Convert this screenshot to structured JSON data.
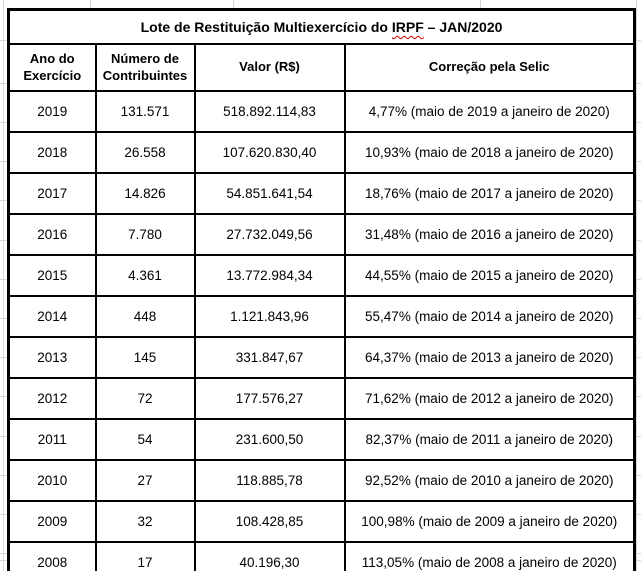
{
  "title": {
    "prefix": "Lote de Restituição Multiexercício do ",
    "word": "IRPF",
    "suffix": " – JAN/2020"
  },
  "table": {
    "headers": [
      "Ano do Exercício",
      "Número de Contribuintes",
      "Valor (R$)",
      "Correção pela Selic"
    ],
    "rows": [
      {
        "ano": "2019",
        "contribuintes": "131.571",
        "valor": "518.892.114,83",
        "correcao": "4,77% (maio de 2019 a janeiro de 2020)"
      },
      {
        "ano": "2018",
        "contribuintes": "26.558",
        "valor": "107.620.830,40",
        "correcao": "10,93% (maio de 2018 a janeiro de 2020)"
      },
      {
        "ano": "2017",
        "contribuintes": "14.826",
        "valor": "54.851.641,54",
        "correcao": "18,76% (maio de 2017 a janeiro de 2020)"
      },
      {
        "ano": "2016",
        "contribuintes": "7.780",
        "valor": "27.732.049,56",
        "correcao": "31,48% (maio de 2016 a janeiro de 2020)"
      },
      {
        "ano": "2015",
        "contribuintes": "4.361",
        "valor": "13.772.984,34",
        "correcao": "44,55% (maio de 2015 a janeiro de 2020)"
      },
      {
        "ano": "2014",
        "contribuintes": "448",
        "valor": "1.121.843,96",
        "correcao": "55,47% (maio de 2014 a janeiro de 2020)"
      },
      {
        "ano": "2013",
        "contribuintes": "145",
        "valor": "331.847,67",
        "correcao": "64,37% (maio de 2013 a janeiro de 2020)"
      },
      {
        "ano": "2012",
        "contribuintes": "72",
        "valor": "177.576,27",
        "correcao": "71,62% (maio de 2012 a janeiro de 2020)"
      },
      {
        "ano": "2011",
        "contribuintes": "54",
        "valor": "231.600,50",
        "correcao": "82,37% (maio de 2011 a janeiro de 2020)"
      },
      {
        "ano": "2010",
        "contribuintes": "27",
        "valor": "118.885,78",
        "correcao": "92,52% (maio de 2010 a janeiro de 2020)"
      },
      {
        "ano": "2009",
        "contribuintes": "32",
        "valor": "108.428,85",
        "correcao": "100,98% (maio de 2009 a janeiro de 2020)"
      },
      {
        "ano": "2008",
        "contribuintes": "17",
        "valor": "40.196,30",
        "correcao": "113,05% (maio de 2008 a janeiro de 2020)"
      }
    ]
  },
  "colors": {
    "border": "#000000",
    "text": "#000000",
    "spellcheck_underline": "#d40000",
    "margin_gridline": "#d8d8d8",
    "background": "#ffffff"
  }
}
